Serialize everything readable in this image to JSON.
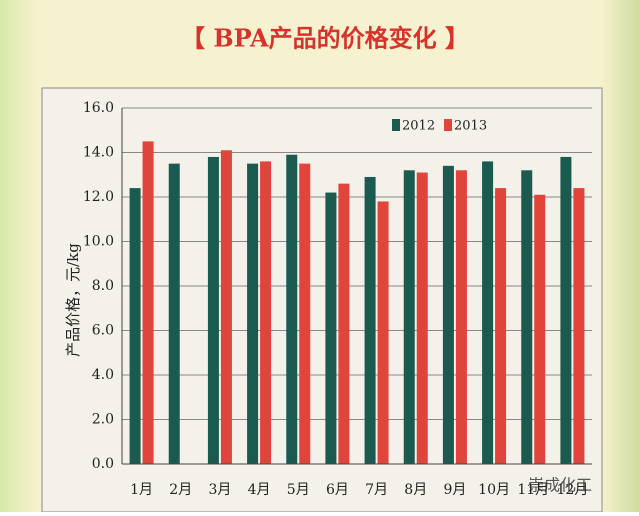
{
  "chart_data": {
    "type": "bar",
    "title": "【 BPA产品的价格变化 】",
    "y_label": "产品价格，元/kg",
    "watermark": "崇成化工",
    "categories": [
      "1月",
      "2月",
      "3月",
      "4月",
      "5月",
      "6月",
      "7月",
      "8月",
      "9月",
      "10月",
      "11月",
      "12月"
    ],
    "series": [
      {
        "name": "2012",
        "color": "#1b5a4f",
        "values": [
          12.4,
          13.5,
          13.8,
          13.5,
          13.9,
          12.2,
          12.9,
          13.2,
          13.4,
          13.6,
          13.2,
          13.8
        ]
      },
      {
        "name": "2013",
        "color": "#e0443a",
        "values": [
          14.5,
          null,
          14.1,
          13.6,
          13.5,
          12.6,
          11.8,
          13.1,
          13.2,
          12.4,
          12.1,
          12.4
        ]
      }
    ],
    "ylim": [
      0,
      16
    ],
    "yticks": [
      {
        "value": 0,
        "label": "0.0"
      },
      {
        "value": 2,
        "label": "2.0"
      },
      {
        "value": 4,
        "label": "4.0"
      },
      {
        "value": 6,
        "label": "6.0"
      },
      {
        "value": 8,
        "label": "8.0"
      },
      {
        "value": 10,
        "label": "10.0"
      },
      {
        "value": 12,
        "label": "12.0"
      },
      {
        "value": 14,
        "label": "14.0"
      },
      {
        "value": 16,
        "label": "16.0"
      }
    ],
    "grid": true,
    "legend": "top-right"
  }
}
